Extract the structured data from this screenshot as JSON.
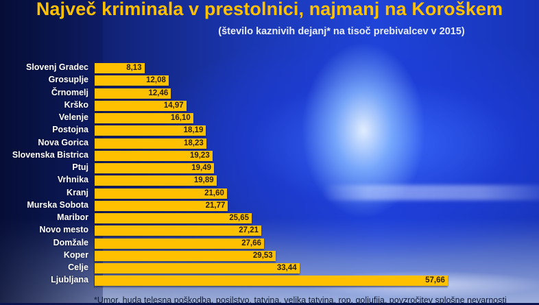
{
  "title": "Največ kriminala v prestolnici, najmanj na Koroškem",
  "subtitle": "(število kaznivih dejanj* na tisoč prebivalcev v 2015)",
  "footnote": "*Umor, huda telesna poškodba, posilstvo, tatvina, velika tatvina, rop, goljufija, povzročitev splošne nevarnosti",
  "colors": {
    "bar": "#ffc000",
    "title": "#ffc000",
    "label": "#ffffff",
    "value_text": "#2a2208"
  },
  "chart_data": {
    "type": "bar",
    "orientation": "horizontal",
    "title": "Največ kriminala v prestolnici, najmanj na Koroškem",
    "subtitle": "(število kaznivih dejanj* na tisoč prebivalcev v 2015)",
    "xlabel": "",
    "ylabel": "",
    "grid": false,
    "legend": null,
    "xlim": [
      0,
      58
    ],
    "categories": [
      "Slovenj Gradec",
      "Grosuplje",
      "Črnomelj",
      "Krško",
      "Velenje",
      "Postojna",
      "Nova Gorica",
      "Slovenska Bistrica",
      "Ptuj",
      "Vrhnika",
      "Kranj",
      "Murska Sobota",
      "Maribor",
      "Novo mesto",
      "Domžale",
      "Koper",
      "Celje",
      "Ljubljana"
    ],
    "values": [
      8.13,
      12.08,
      12.46,
      14.97,
      16.1,
      18.19,
      18.23,
      19.23,
      19.49,
      19.89,
      21.6,
      21.77,
      25.65,
      27.21,
      27.66,
      29.53,
      33.44,
      57.66
    ],
    "value_labels": [
      "8,13",
      "12,08",
      "12,46",
      "14,97",
      "16,10",
      "18,19",
      "18,23",
      "19,23",
      "19,49",
      "19,89",
      "21,60",
      "21,77",
      "25,65",
      "27,21",
      "27,66",
      "29,53",
      "33,44",
      "57,66"
    ]
  }
}
